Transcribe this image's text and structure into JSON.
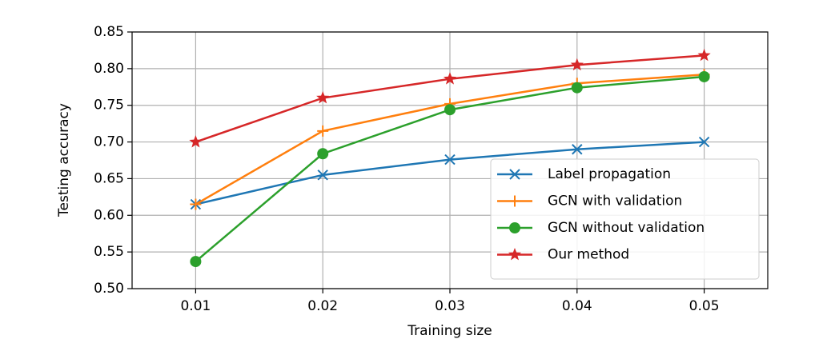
{
  "chart_data": {
    "type": "line",
    "x_label": "Training size",
    "y_label": "Testing accuracy",
    "x": [
      0.01,
      0.02,
      0.03,
      0.04,
      0.05
    ],
    "series": [
      {
        "name": "Label propagation",
        "color": "#1f77b4",
        "marker": "x",
        "values": [
          0.615,
          0.655,
          0.676,
          0.69,
          0.7
        ]
      },
      {
        "name": "GCN with validation",
        "color": "#ff7f0e",
        "marker": "+",
        "values": [
          0.615,
          0.715,
          0.752,
          0.78,
          0.792
        ]
      },
      {
        "name": "GCN without validation",
        "color": "#2ca02c",
        "marker": "o",
        "values": [
          0.537,
          0.684,
          0.744,
          0.774,
          0.789
        ]
      },
      {
        "name": "Our method",
        "color": "#d62728",
        "marker": "*",
        "values": [
          0.7,
          0.76,
          0.786,
          0.805,
          0.818
        ]
      }
    ],
    "xlim": [
      0.005,
      0.055
    ],
    "xticks": [
      0.01,
      0.02,
      0.03,
      0.04,
      0.05
    ],
    "ylim": [
      0.5,
      0.85
    ],
    "yticks": [
      {
        "value": 0.5,
        "label": "0.50"
      },
      0.55,
      {
        "value": 0.6,
        "label": "0.60"
      },
      0.65,
      {
        "value": 0.7,
        "label": "0.70"
      },
      0.75,
      {
        "value": 0.8,
        "label": "0.80"
      },
      0.85
    ],
    "grid": true,
    "legend": "lower right"
  }
}
